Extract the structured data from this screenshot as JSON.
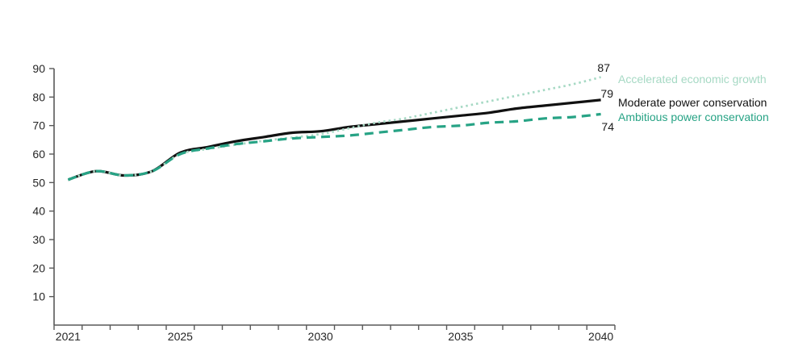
{
  "chart_data": {
    "type": "line",
    "title": "",
    "xlabel": "",
    "ylabel": "",
    "x": [
      2021,
      2022,
      2023,
      2024,
      2025,
      2026,
      2027,
      2028,
      2029,
      2030,
      2031,
      2032,
      2033,
      2034,
      2035,
      2036,
      2037,
      2038,
      2039,
      2040
    ],
    "x_axis": {
      "labeled_ticks": [
        2021,
        2025,
        2030,
        2035,
        2040
      ],
      "tick_style": "between-categories"
    },
    "y_axis": {
      "range": [
        0,
        90
      ],
      "ticks": [
        10,
        20,
        30,
        40,
        50,
        60,
        70,
        80,
        90
      ]
    },
    "grid": false,
    "legend_position": "right-of-line-ends",
    "series": [
      {
        "name": "Accelerated economic growth",
        "style": "dotted",
        "color": "#a6d9c4",
        "end_label": "87",
        "values": [
          51,
          54,
          52.5,
          54,
          60,
          61.8,
          63.3,
          64.7,
          65.8,
          67,
          69,
          71,
          72.5,
          74.5,
          76.5,
          78.5,
          80.5,
          82.5,
          84.5,
          87
        ]
      },
      {
        "name": "Moderate power conservation",
        "style": "solid",
        "color": "#111111",
        "end_label": "79",
        "values": [
          51,
          54,
          52.5,
          54,
          60.5,
          62.5,
          64.5,
          66,
          67.5,
          68,
          69.5,
          70.5,
          71.5,
          72.5,
          73.5,
          74.5,
          76,
          77,
          78,
          79
        ]
      },
      {
        "name": "Ambitious power conservation",
        "style": "dashed",
        "color": "#27a385",
        "end_label": "74",
        "values": [
          51,
          54,
          52.5,
          54,
          60,
          62,
          63.5,
          64.5,
          65.5,
          66,
          66.5,
          67.5,
          68.5,
          69.5,
          70,
          71,
          71.5,
          72.5,
          73,
          74
        ]
      }
    ]
  },
  "labels": {
    "accelerated_value": "87",
    "moderate_value": "79",
    "ambitious_value": "74",
    "accelerated_name": "Accelerated economic growth",
    "moderate_name": "Moderate power conservation",
    "ambitious_name": "Ambitious power conservation"
  },
  "colors": {
    "background": "#ffffff",
    "axis_line": "#595959",
    "tick_text": "#262626",
    "accelerated": "#a6d9c4",
    "moderate": "#111111",
    "ambitious": "#27a385"
  }
}
